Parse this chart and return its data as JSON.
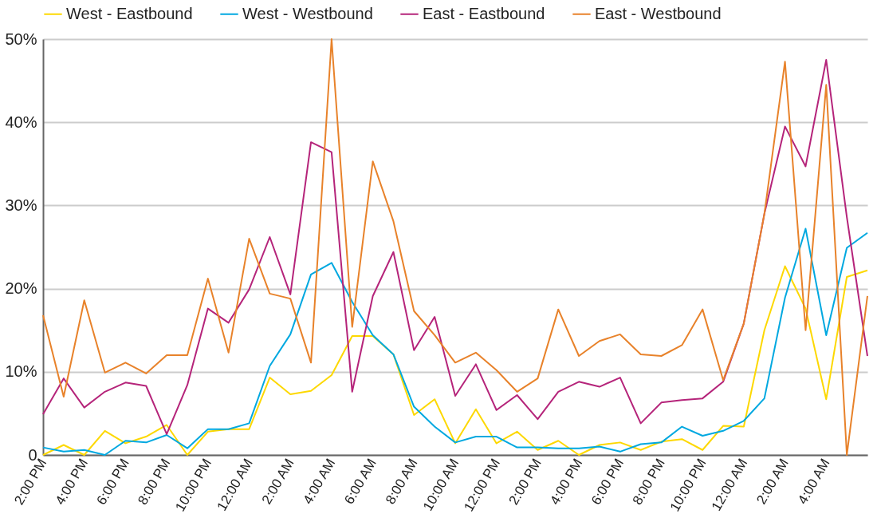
{
  "chart_data": {
    "type": "line",
    "categories": [
      "2:00 PM",
      null,
      "4:00 PM",
      null,
      "6:00 PM",
      null,
      "8:00 PM",
      null,
      "10:00 PM",
      null,
      "12:00 AM",
      null,
      "2:00 AM",
      null,
      "4:00 AM",
      null,
      "6:00 AM",
      null,
      "8:00 AM",
      null,
      "10:00 AM",
      null,
      "12:00 PM",
      null,
      "2:00 PM",
      null,
      "4:00 PM",
      null,
      "6:00 PM",
      null,
      "8:00 PM",
      null,
      "10:00 PM",
      null,
      "12:00 AM",
      null,
      "2:00 AM",
      null,
      "4:00 AM",
      null,
      null
    ],
    "series": [
      {
        "name": "West - Eastbound",
        "color": "#fdd800",
        "values": [
          0,
          1.2,
          0,
          2.9,
          1.4,
          2.2,
          3.6,
          0,
          2.8,
          3.1,
          3.1,
          9.3,
          7.3,
          7.7,
          9.6,
          14.3,
          14.3,
          12.1,
          4.8,
          6.7,
          1.4,
          5.5,
          1.4,
          2.8,
          0.6,
          1.7,
          0,
          1.2,
          1.5,
          0.6,
          1.6,
          1.9,
          0.6,
          3.5,
          3.4,
          15,
          22.7,
          17.6,
          6.7,
          21.4,
          22.2
        ]
      },
      {
        "name": "West - Westbound",
        "color": "#00a8e0",
        "values": [
          0.9,
          0.4,
          0.6,
          0,
          1.7,
          1.5,
          2.4,
          0.8,
          3.1,
          3.1,
          3.8,
          10.7,
          14.5,
          21.7,
          23.1,
          18.4,
          14.4,
          12.1,
          5.8,
          3.4,
          1.5,
          2.2,
          2.2,
          0.9,
          0.9,
          0.8,
          0.8,
          1,
          0.4,
          1.3,
          1.5,
          3.4,
          2.3,
          2.9,
          4.1,
          6.8,
          18.9,
          27.2,
          14.4,
          24.9,
          26.7
        ]
      },
      {
        "name": "East - Eastbound",
        "color": "#b5247a",
        "values": [
          4.9,
          9.2,
          5.7,
          7.6,
          8.7,
          8.3,
          2.5,
          8.4,
          17.6,
          15.9,
          19.9,
          26.2,
          19.3,
          37.6,
          36.4,
          7.6,
          19.1,
          24.4,
          12.6,
          16.6,
          7.1,
          10.9,
          5.4,
          7.2,
          4.3,
          7.6,
          8.8,
          8.2,
          9.3,
          3.8,
          6.3,
          6.6,
          6.8,
          8.8,
          15.8,
          29,
          39.5,
          34.7,
          47.5,
          28.6,
          11.9
        ]
      },
      {
        "name": "East - Westbound",
        "color": "#e8822a",
        "values": [
          16.8,
          7,
          18.6,
          9.9,
          11.1,
          9.8,
          12,
          12,
          21.2,
          12.3,
          26,
          19.4,
          18.8,
          11.1,
          50,
          15.4,
          35.3,
          28.1,
          17.3,
          14.4,
          11.1,
          12.3,
          10.2,
          7.6,
          9.2,
          17.5,
          11.9,
          13.7,
          14.5,
          12.1,
          11.9,
          13.2,
          17.5,
          9,
          15.8,
          29,
          47.3,
          15,
          44.5,
          0,
          19.1
        ]
      }
    ],
    "ylim": [
      0,
      50
    ],
    "yticks": [
      0,
      {
        "value": 10,
        "label": "10%"
      },
      {
        "value": 20,
        "label": "20%"
      },
      {
        "value": 30,
        "label": "30%"
      },
      {
        "value": 40,
        "label": "40%"
      },
      {
        "value": 50,
        "label": "50%"
      }
    ],
    "grid": "y",
    "legend": "top",
    "marker": "none",
    "line_style": "solid"
  }
}
